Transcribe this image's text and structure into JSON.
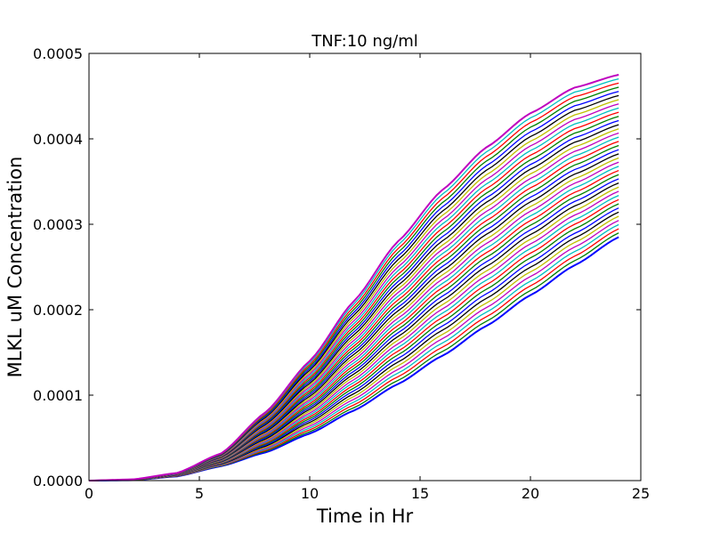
{
  "chart_data": {
    "type": "line",
    "title": "TNF:10 ng/ml",
    "xlabel": "Time in Hr",
    "ylabel": "MLKL uM Concentration",
    "xlim": [
      0,
      25
    ],
    "ylim": [
      0,
      0.0005
    ],
    "xticks": [
      "0",
      "5",
      "10",
      "15",
      "20",
      "25"
    ],
    "yticks": [
      "0.0000",
      "0.0001",
      "0.0002",
      "0.0003",
      "0.0004",
      "0.0005"
    ],
    "grid": false,
    "legend": "none",
    "series_family": {
      "count": 40,
      "x_range": [
        0,
        24
      ],
      "colors": [
        "#0000ff",
        "#008000",
        "#ff0000",
        "#00bfbf",
        "#bf00bf",
        "#bfbf00",
        "#000000"
      ],
      "top_curve_points": [
        [
          0,
          0
        ],
        [
          2,
          1.5e-06
        ],
        [
          4,
          9e-06
        ],
        [
          6,
          3.2e-05
        ],
        [
          8,
          8e-05
        ],
        [
          10,
          0.00014
        ],
        [
          12,
          0.00021
        ],
        [
          14,
          0.00028
        ],
        [
          16,
          0.00034
        ],
        [
          18,
          0.00039
        ],
        [
          20,
          0.00043
        ],
        [
          22,
          0.00046
        ],
        [
          24,
          0.000475
        ]
      ],
      "bottom_curve_points": [
        [
          0,
          0
        ],
        [
          2,
          5e-07
        ],
        [
          4,
          5e-06
        ],
        [
          6,
          1.7e-05
        ],
        [
          8,
          3.3e-05
        ],
        [
          10,
          5.5e-05
        ],
        [
          12,
          8.2e-05
        ],
        [
          14,
          0.000113
        ],
        [
          16,
          0.000146
        ],
        [
          18,
          0.000181
        ],
        [
          20,
          0.000217
        ],
        [
          22,
          0.000252
        ],
        [
          24,
          0.000285
        ]
      ]
    }
  }
}
